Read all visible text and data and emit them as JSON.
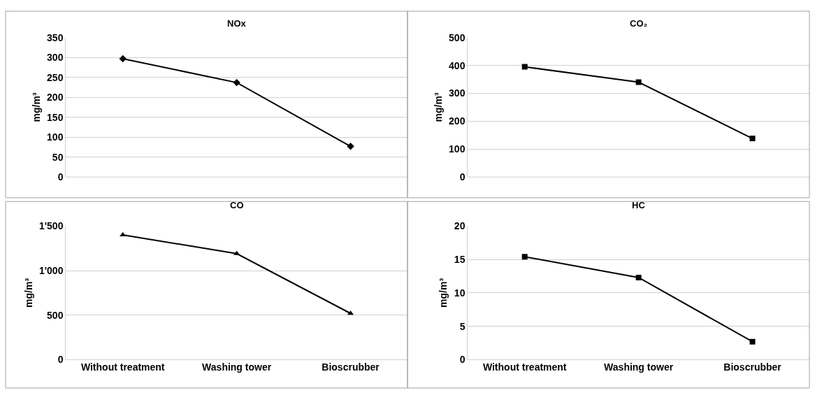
{
  "chart_data": [
    {
      "type": "line",
      "title": "NOx",
      "ylabel": "mg/m³",
      "categories": [
        null,
        null,
        null
      ],
      "series": [
        {
          "color": "#000000",
          "values": [
            297,
            237,
            77
          ]
        }
      ],
      "ylim": [
        0,
        350
      ],
      "yticks": [
        0,
        50,
        100,
        150,
        200,
        250,
        300,
        350
      ],
      "grid": "y",
      "marker": "diamond"
    },
    {
      "type": "line",
      "title": "CO₂",
      "ylabel": "mg/m³",
      "categories": [
        null,
        null,
        null
      ],
      "series": [
        {
          "color": "#000000",
          "values": [
            395,
            340,
            138
          ]
        }
      ],
      "ylim": [
        0,
        500
      ],
      "yticks": [
        0,
        100,
        200,
        300,
        400,
        500
      ],
      "grid": "y",
      "marker": "square"
    },
    {
      "type": "line",
      "title": "CO",
      "ylabel": "mg/m³",
      "categories": [
        "Without treatment",
        "Washing tower",
        "Bioscrubber"
      ],
      "series": [
        {
          "color": "#000000",
          "values": [
            1400,
            1190,
            520
          ]
        }
      ],
      "ylim": [
        0,
        1500
      ],
      "yticks": [
        0,
        500,
        {
          "value": 1000,
          "label": "1'000"
        },
        {
          "value": 1500,
          "label": "1'500"
        }
      ],
      "grid": "y",
      "marker": "triangle"
    },
    {
      "type": "line",
      "title": "HC",
      "ylabel": "mg/m³",
      "categories": [
        "Without treatment",
        "Washing tower",
        "Bioscrubber"
      ],
      "series": [
        {
          "color": "#000000",
          "values": [
            15.4,
            12.3,
            2.7
          ]
        }
      ],
      "ylim": [
        0,
        20
      ],
      "yticks": [
        0,
        5,
        10,
        15,
        20
      ],
      "grid": "y",
      "marker": "square"
    }
  ]
}
